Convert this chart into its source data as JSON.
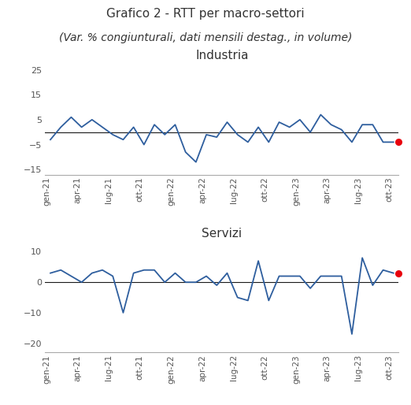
{
  "title_line1": "Grafico 2 - RTT per macro-settori",
  "title_line2": "(Var. % congiunturali, dati mensili destag., in volume)",
  "title_fontsize": 11,
  "subtitle_fontsize": 10,
  "x_labels": [
    "gen-21",
    "apr-21",
    "lug-21",
    "ott-21",
    "gen-22",
    "apr-22",
    "lug-22",
    "ott-22",
    "gen-23",
    "apr-23",
    "lug-23",
    "ott-23"
  ],
  "industria_title": "Industria",
  "industria_data": [
    -3,
    2,
    6,
    2,
    5,
    2,
    -1,
    -3,
    2,
    -5,
    3,
    -1,
    3,
    -8,
    -12,
    -1,
    -2,
    4,
    -1,
    -4,
    2,
    -4,
    4,
    2,
    5,
    0,
    7,
    3,
    1,
    -4,
    3,
    3,
    -4,
    -4
  ],
  "industria_ylim": [
    -17,
    27
  ],
  "industria_yticks": [
    -15,
    -5,
    5,
    15,
    25
  ],
  "servizi_title": "Servizi",
  "servizi_data": [
    3,
    4,
    2,
    0,
    3,
    4,
    2,
    -10,
    3,
    4,
    4,
    0,
    3,
    0,
    0,
    2,
    -1,
    3,
    -5,
    -6,
    7,
    -6,
    2,
    2,
    2,
    -2,
    2,
    2,
    2,
    -17,
    8,
    -1,
    4,
    3
  ],
  "servizi_ylim": [
    -23,
    13
  ],
  "servizi_yticks": [
    10,
    0,
    -10,
    -20
  ],
  "line_color": "#2e5e9e",
  "dot_color": "#e8000d",
  "zero_line_color": "#1a1a1a",
  "background_color": "#ffffff",
  "axis_color": "#aaaaaa",
  "text_color": "#333333",
  "tick_label_color": "#555555"
}
